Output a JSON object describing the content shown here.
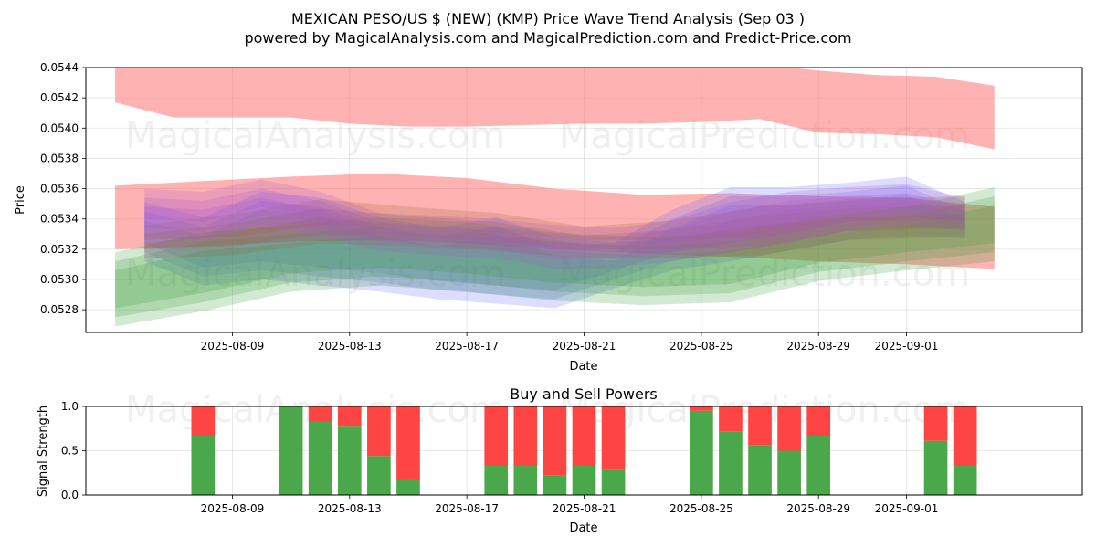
{
  "title_line1": "MEXICAN PESO/US $ (NEW) (KMP) Price Wave Trend Analysis (Sep 03 )",
  "title_line2": "powered by MagicalAnalysis.com and MagicalPrediction.com and Predict-Price.com",
  "watermarks": [
    "MagicalAnalysis.com",
    "MagicalPrediction.com"
  ],
  "colors": {
    "red_band": "#ff6666",
    "blue_band": "#6666ff",
    "green_band": "#339933",
    "brown_band": "#996633",
    "purple_band": "#aa55cc",
    "buy_bar": "#4aa84a",
    "sell_bar": "#ff4444"
  },
  "chart_data": [
    {
      "type": "area",
      "xlabel": "Date",
      "ylabel": "Price",
      "ylim": [
        0.05265,
        0.0544
      ],
      "yticks": [
        "0.0528",
        "0.0530",
        "0.0532",
        "0.0534",
        "0.0536",
        "0.0538",
        "0.0540",
        "0.0542",
        "0.0544"
      ],
      "xticks": [
        "2025-08-09",
        "2025-08-13",
        "2025-08-17",
        "2025-08-21",
        "2025-08-25",
        "2025-08-29",
        "2025-09-01"
      ],
      "xlim": [
        "2025-08-04",
        "2025-09-07"
      ],
      "grid": true,
      "series": [
        {
          "color": "red",
          "x": [
            "2025-08-05",
            "2025-08-07",
            "2025-08-09",
            "2025-08-11",
            "2025-08-13",
            "2025-08-15",
            "2025-08-17",
            "2025-08-19",
            "2025-08-21",
            "2025-08-23",
            "2025-08-25",
            "2025-08-27",
            "2025-08-29",
            "2025-08-31",
            "2025-09-02",
            "2025-09-04"
          ],
          "lower": [
            0.05417,
            0.05407,
            0.05407,
            0.05407,
            0.05403,
            0.05401,
            0.05401,
            0.05402,
            0.05403,
            0.05403,
            0.05404,
            0.05406,
            0.05397,
            0.05396,
            0.05394,
            0.05386
          ],
          "upper": [
            0.05446,
            0.05446,
            0.05446,
            0.05446,
            0.05446,
            0.05446,
            0.05446,
            0.05446,
            0.05446,
            0.05445,
            0.05443,
            0.05442,
            0.05438,
            0.05435,
            0.05434,
            0.05428
          ]
        },
        {
          "color": "red",
          "x": [
            "2025-08-05",
            "2025-08-08",
            "2025-08-11",
            "2025-08-14",
            "2025-08-17",
            "2025-08-20",
            "2025-08-23",
            "2025-08-26",
            "2025-08-29",
            "2025-09-01",
            "2025-09-04"
          ],
          "lower": [
            0.0532,
            0.05322,
            0.05325,
            0.05326,
            0.05324,
            0.0532,
            0.05317,
            0.05315,
            0.05312,
            0.0531,
            0.05307
          ],
          "upper": [
            0.05362,
            0.05365,
            0.05368,
            0.0537,
            0.05367,
            0.0536,
            0.05356,
            0.05357,
            0.05355,
            0.05354,
            0.05348
          ]
        },
        {
          "color": "blue",
          "x": [
            "2025-08-06",
            "2025-08-08",
            "2025-08-10",
            "2025-08-12",
            "2025-08-14",
            "2025-08-16",
            "2025-08-18",
            "2025-08-20",
            "2025-08-22",
            "2025-08-24",
            "2025-08-26",
            "2025-08-28",
            "2025-08-30",
            "2025-09-01",
            "2025-09-03"
          ],
          "lower": [
            0.05318,
            0.05302,
            0.05306,
            0.05302,
            0.05298,
            0.05293,
            0.0529,
            0.05287,
            0.053,
            0.05312,
            0.05318,
            0.05325,
            0.05332,
            0.05335,
            0.05333
          ],
          "upper": [
            0.05345,
            0.05335,
            0.05352,
            0.05348,
            0.05335,
            0.05328,
            0.05335,
            0.05322,
            0.05318,
            0.0534,
            0.05355,
            0.05355,
            0.05358,
            0.05362,
            0.05345
          ]
        },
        {
          "color": "green",
          "x": [
            "2025-08-05",
            "2025-08-08",
            "2025-08-11",
            "2025-08-14",
            "2025-08-17",
            "2025-08-20",
            "2025-08-23",
            "2025-08-26",
            "2025-08-29",
            "2025-09-01",
            "2025-09-04"
          ],
          "lower": [
            0.05275,
            0.05285,
            0.05298,
            0.05302,
            0.05298,
            0.05292,
            0.05289,
            0.05291,
            0.05305,
            0.05312,
            0.05318
          ],
          "upper": [
            0.05312,
            0.05325,
            0.0533,
            0.05335,
            0.05332,
            0.05325,
            0.05322,
            0.05325,
            0.05335,
            0.05342,
            0.05355
          ]
        },
        {
          "color": "brown",
          "x": [
            "2025-08-06",
            "2025-08-09",
            "2025-08-12",
            "2025-08-15",
            "2025-08-18",
            "2025-08-21",
            "2025-08-24",
            "2025-08-27",
            "2025-08-30",
            "2025-09-03"
          ],
          "lower": [
            0.0532,
            0.05322,
            0.0533,
            0.05328,
            0.05325,
            0.0532,
            0.0532,
            0.05322,
            0.05332,
            0.05334
          ],
          "upper": [
            0.0533,
            0.05337,
            0.05347,
            0.05342,
            0.05338,
            0.05329,
            0.05333,
            0.05342,
            0.05347,
            0.05349
          ]
        },
        {
          "color": "purple",
          "x": [
            "2025-08-06",
            "2025-08-08",
            "2025-08-10",
            "2025-08-12",
            "2025-08-14",
            "2025-08-16",
            "2025-08-18",
            "2025-08-20",
            "2025-08-22",
            "2025-08-24",
            "2025-08-26",
            "2025-08-28",
            "2025-08-30",
            "2025-09-01",
            "2025-09-03"
          ],
          "lower": [
            0.05334,
            0.05332,
            0.05342,
            0.05334,
            0.05325,
            0.05322,
            0.0532,
            0.05313,
            0.05314,
            0.05318,
            0.05324,
            0.0533,
            0.05338,
            0.05342,
            0.05338
          ],
          "upper": [
            0.05354,
            0.05352,
            0.0536,
            0.05352,
            0.05338,
            0.05336,
            0.05334,
            0.0533,
            0.05328,
            0.05333,
            0.05345,
            0.05352,
            0.05355,
            0.05357,
            0.05348
          ]
        }
      ]
    },
    {
      "type": "bar",
      "title": "Buy and Sell Powers",
      "xlabel": "Date",
      "ylabel": "Signal Strength",
      "ylim": [
        0,
        1
      ],
      "yticks": [
        "0.0",
        "0.5",
        "1.0"
      ],
      "xticks": [
        "2025-08-09",
        "2025-08-13",
        "2025-08-17",
        "2025-08-21",
        "2025-08-25",
        "2025-08-29",
        "2025-09-01"
      ],
      "xlim": [
        "2025-08-04",
        "2025-09-07"
      ],
      "grid": true,
      "series": [
        {
          "name": "buy",
          "color": "green"
        },
        {
          "name": "sell",
          "color": "red"
        }
      ],
      "bars": [
        {
          "date": "2025-08-08",
          "buy": 0.67
        },
        {
          "date": "2025-08-11",
          "buy": 1.0
        },
        {
          "date": "2025-08-12",
          "buy": 0.83
        },
        {
          "date": "2025-08-13",
          "buy": 0.78
        },
        {
          "date": "2025-08-14",
          "buy": 0.44
        },
        {
          "date": "2025-08-15",
          "buy": 0.17
        },
        {
          "date": "2025-08-18",
          "buy": 0.33
        },
        {
          "date": "2025-08-19",
          "buy": 0.33
        },
        {
          "date": "2025-08-20",
          "buy": 0.22
        },
        {
          "date": "2025-08-21",
          "buy": 0.33
        },
        {
          "date": "2025-08-22",
          "buy": 0.28
        },
        {
          "date": "2025-08-25",
          "buy": 0.95
        },
        {
          "date": "2025-08-26",
          "buy": 0.72
        },
        {
          "date": "2025-08-27",
          "buy": 0.56
        },
        {
          "date": "2025-08-28",
          "buy": 0.5
        },
        {
          "date": "2025-08-29",
          "buy": 0.67
        },
        {
          "date": "2025-09-02",
          "buy": 0.61
        },
        {
          "date": "2025-09-03",
          "buy": 0.33
        }
      ]
    }
  ]
}
